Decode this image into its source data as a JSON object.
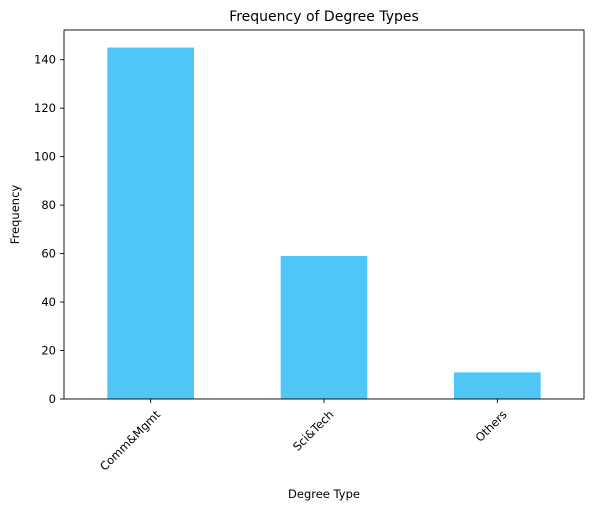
{
  "chart_data": {
    "type": "bar",
    "title": "Frequency of Degree Types",
    "xlabel": "Degree Type",
    "ylabel": "Frequency",
    "categories": [
      "Comm&Mgmt",
      "Sci&Tech",
      "Others"
    ],
    "values": [
      145,
      59,
      11
    ],
    "ylim": [
      0,
      152.25
    ],
    "yticks": [
      0,
      20,
      40,
      60,
      80,
      100,
      120,
      140
    ],
    "xtick_rotation_deg": 45,
    "bar_color": "#4FC6F5",
    "grid": false,
    "legend": "none"
  }
}
